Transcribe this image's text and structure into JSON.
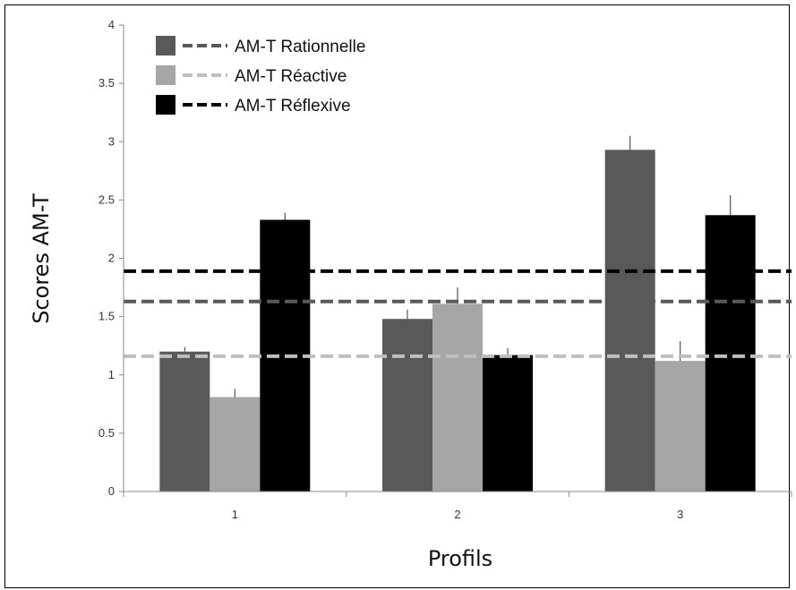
{
  "chart_data": {
    "type": "bar",
    "xlabel": "Profils",
    "ylabel": "Scores AM-T",
    "categories": [
      "1",
      "2",
      "3"
    ],
    "ylim": [
      0,
      4
    ],
    "yticks": [
      "0",
      "0.5",
      "1",
      "1.5",
      "2",
      "2.5",
      "3",
      "3.5",
      "4"
    ],
    "grid": false,
    "legend_position": "top-left",
    "series": [
      {
        "name": "AM-T Rationnelle",
        "color": "#595959",
        "values": [
          1.2,
          1.48,
          2.93
        ],
        "errors": [
          0.04,
          0.08,
          0.12
        ]
      },
      {
        "name": "AM-T Réactive",
        "color": "#a6a6a6",
        "values": [
          0.81,
          1.61,
          1.12
        ],
        "errors": [
          0.07,
          0.14,
          0.17
        ]
      },
      {
        "name": "AM-T Réflexive",
        "color": "#000000",
        "values": [
          2.33,
          1.17,
          2.37
        ],
        "errors": [
          0.06,
          0.06,
          0.17
        ]
      }
    ],
    "reference_lines": [
      {
        "name": "AM-T Rationnelle",
        "color": "#595959",
        "value": 1.63
      },
      {
        "name": "AM-T Réactive",
        "color": "#bfbfbf",
        "value": 1.16
      },
      {
        "name": "AM-T Réflexive",
        "color": "#000000",
        "value": 1.89
      }
    ]
  }
}
